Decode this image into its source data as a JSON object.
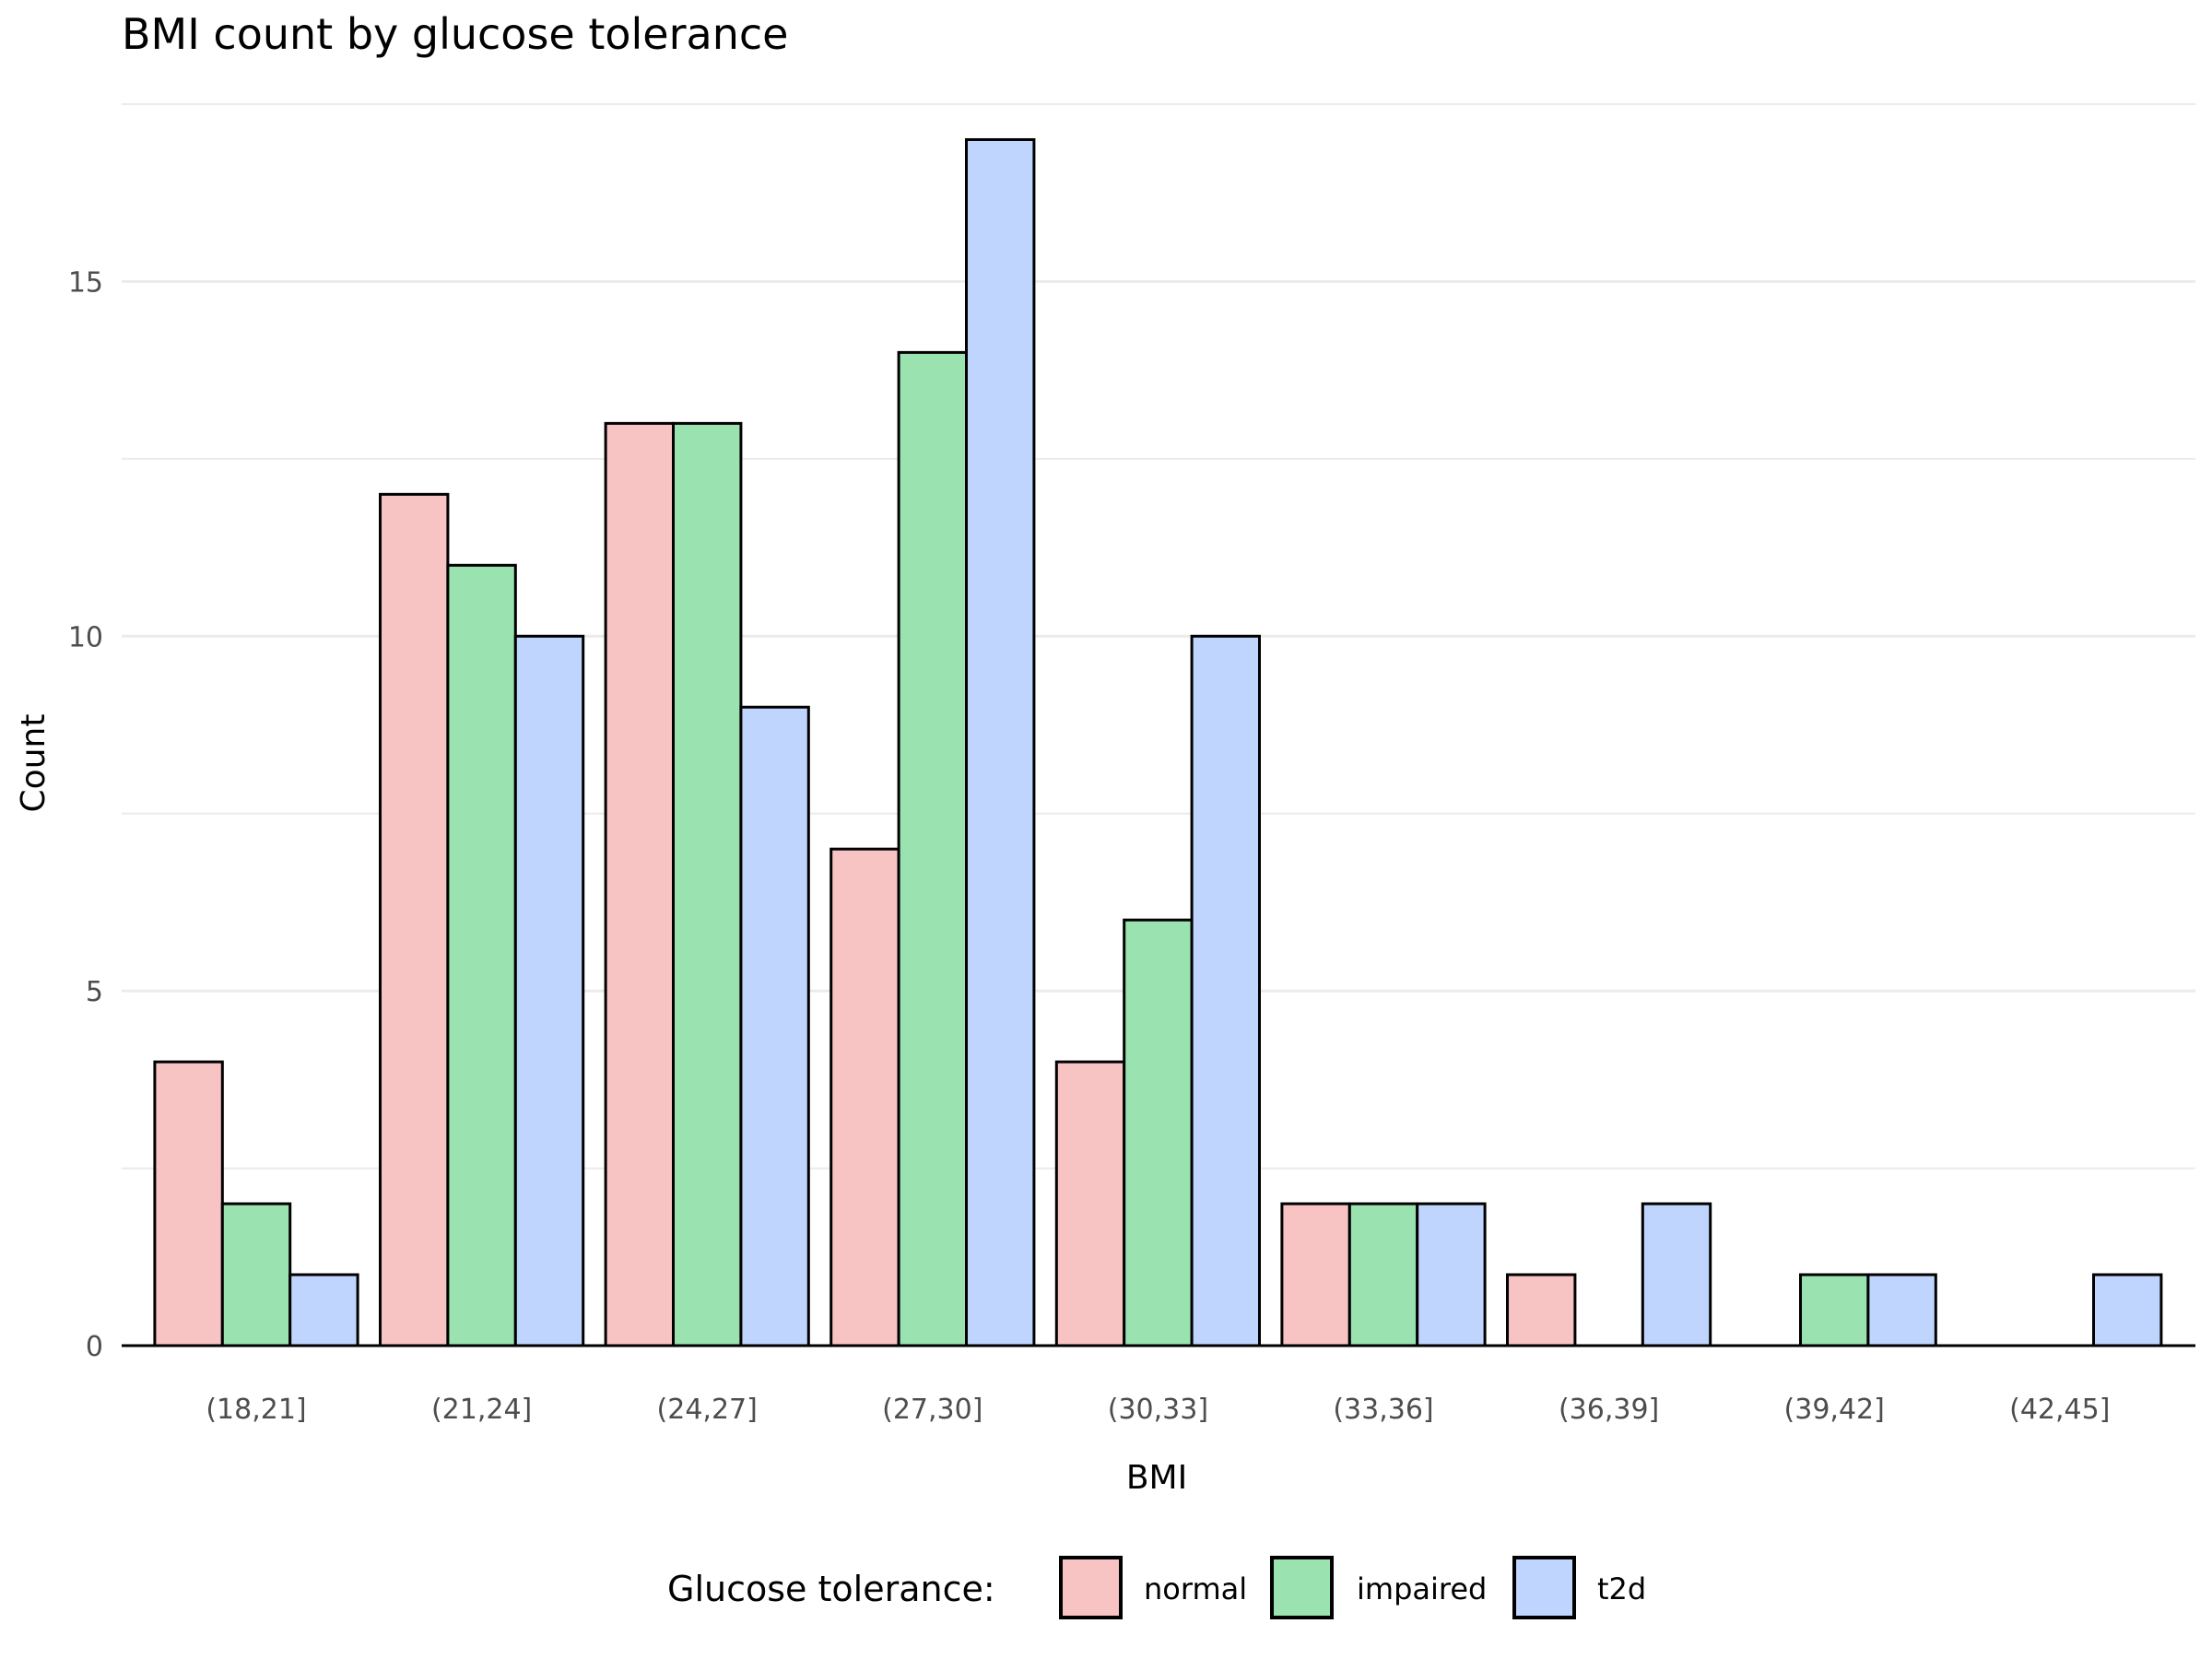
{
  "chart_data": {
    "type": "bar",
    "title": "BMI count by glucose tolerance",
    "xlabel": "BMI",
    "ylabel": "Count",
    "categories": [
      "(18,21]",
      "(21,24]",
      "(24,27]",
      "(27,30]",
      "(30,33]",
      "(33,36]",
      "(36,39]",
      "(39,42]",
      "(42,45]"
    ],
    "series": [
      {
        "name": "normal",
        "color": "#f8c4c3",
        "values": [
          4,
          12,
          13,
          7,
          4,
          2,
          1,
          null,
          null
        ]
      },
      {
        "name": "impaired",
        "color": "#9ae3b0",
        "values": [
          2,
          11,
          13,
          14,
          6,
          2,
          null,
          1,
          null
        ]
      },
      {
        "name": "t2d",
        "color": "#bfd5fd",
        "values": [
          1,
          10,
          9,
          17,
          10,
          2,
          2,
          1,
          1
        ]
      }
    ],
    "ylim": [
      0,
      17.5
    ],
    "yticks": [
      0,
      5,
      10,
      15
    ],
    "grid": true,
    "legend": {
      "title": "Glucose tolerance:",
      "position": "bottom"
    },
    "bar_outline_color": "#000000"
  }
}
